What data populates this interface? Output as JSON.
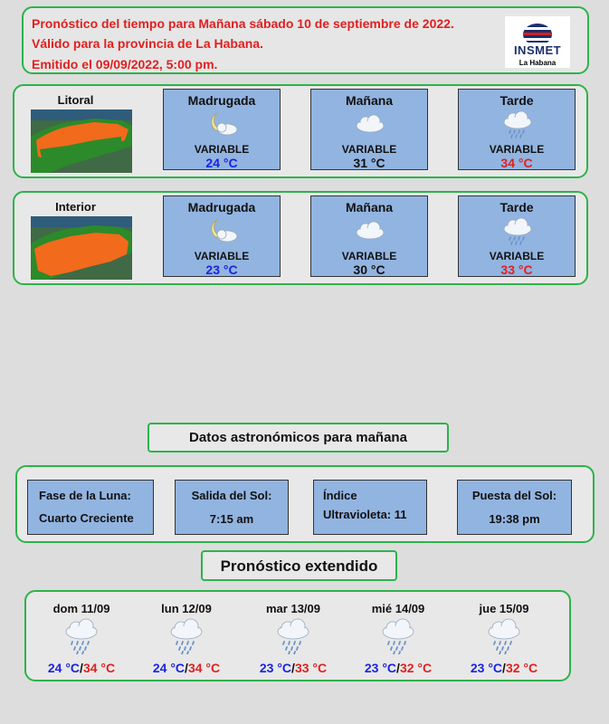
{
  "header": {
    "line1": "Pronóstico del tiempo para Mañana sábado 10 de septiembre de 2022.",
    "line2": "Válido para la provincia de La Habana.",
    "line3": "Emitido el 09/09/2022, 5:00 pm.",
    "logo_text": "INSMET",
    "logo_city": "La Habana"
  },
  "zones": [
    {
      "name": "Litoral",
      "periods": [
        {
          "name": "Madrugada",
          "icon": "moon-cloud-icon",
          "condition": "VARIABLE",
          "temp": "24",
          "unit": "°C",
          "temp_color": "#1a24e0"
        },
        {
          "name": "Mañana",
          "icon": "cloud-icon",
          "condition": "VARIABLE",
          "temp": "31",
          "unit": "°C",
          "temp_color": "#111111"
        },
        {
          "name": "Tarde",
          "icon": "rain-cloud-icon",
          "condition": "VARIABLE",
          "temp": "34",
          "unit": "°C",
          "temp_color": "#e02020"
        }
      ]
    },
    {
      "name": "Interior",
      "periods": [
        {
          "name": "Madrugada",
          "icon": "moon-cloud-icon",
          "condition": "VARIABLE",
          "temp": "23",
          "unit": "°C",
          "temp_color": "#1a24e0"
        },
        {
          "name": "Mañana",
          "icon": "cloud-icon",
          "condition": "VARIABLE",
          "temp": "30",
          "unit": "°C",
          "temp_color": "#111111"
        },
        {
          "name": "Tarde",
          "icon": "rain-cloud-icon",
          "condition": "VARIABLE",
          "temp": "33",
          "unit": "°C",
          "temp_color": "#e02020"
        }
      ]
    }
  ],
  "astro": {
    "title": "Datos astronómicos para mañana",
    "moon_label": "Fase de la Luna:",
    "moon_value": "Cuarto Creciente",
    "sunrise_label": "Salida del Sol:",
    "sunrise_value": "7:15 am",
    "uv_label": "Índice",
    "uv_value": "Ultravioleta: 11",
    "sunset_label": "Puesta del Sol:",
    "sunset_value": "19:38 pm"
  },
  "extended": {
    "title": "Pronóstico extendido",
    "days": [
      {
        "name": "dom 11/09",
        "min": "24",
        "max": "34",
        "icon": "rain-cloud-icon"
      },
      {
        "name": "lun 12/09",
        "min": "24",
        "max": "34",
        "icon": "rain-cloud-icon"
      },
      {
        "name": "mar 13/09",
        "min": "23",
        "max": "33",
        "icon": "rain-cloud-icon"
      },
      {
        "name": "mié 14/09",
        "min": "23",
        "max": "32",
        "icon": "rain-cloud-icon"
      },
      {
        "name": "jue 15/09",
        "min": "23",
        "max": "32",
        "icon": "rain-cloud-icon"
      }
    ],
    "unit": "°C",
    "sep": "/"
  },
  "colors": {
    "cold": "#1a24e0",
    "hot": "#e02020",
    "panel": "#92b4e0",
    "border": "#2db34a"
  }
}
